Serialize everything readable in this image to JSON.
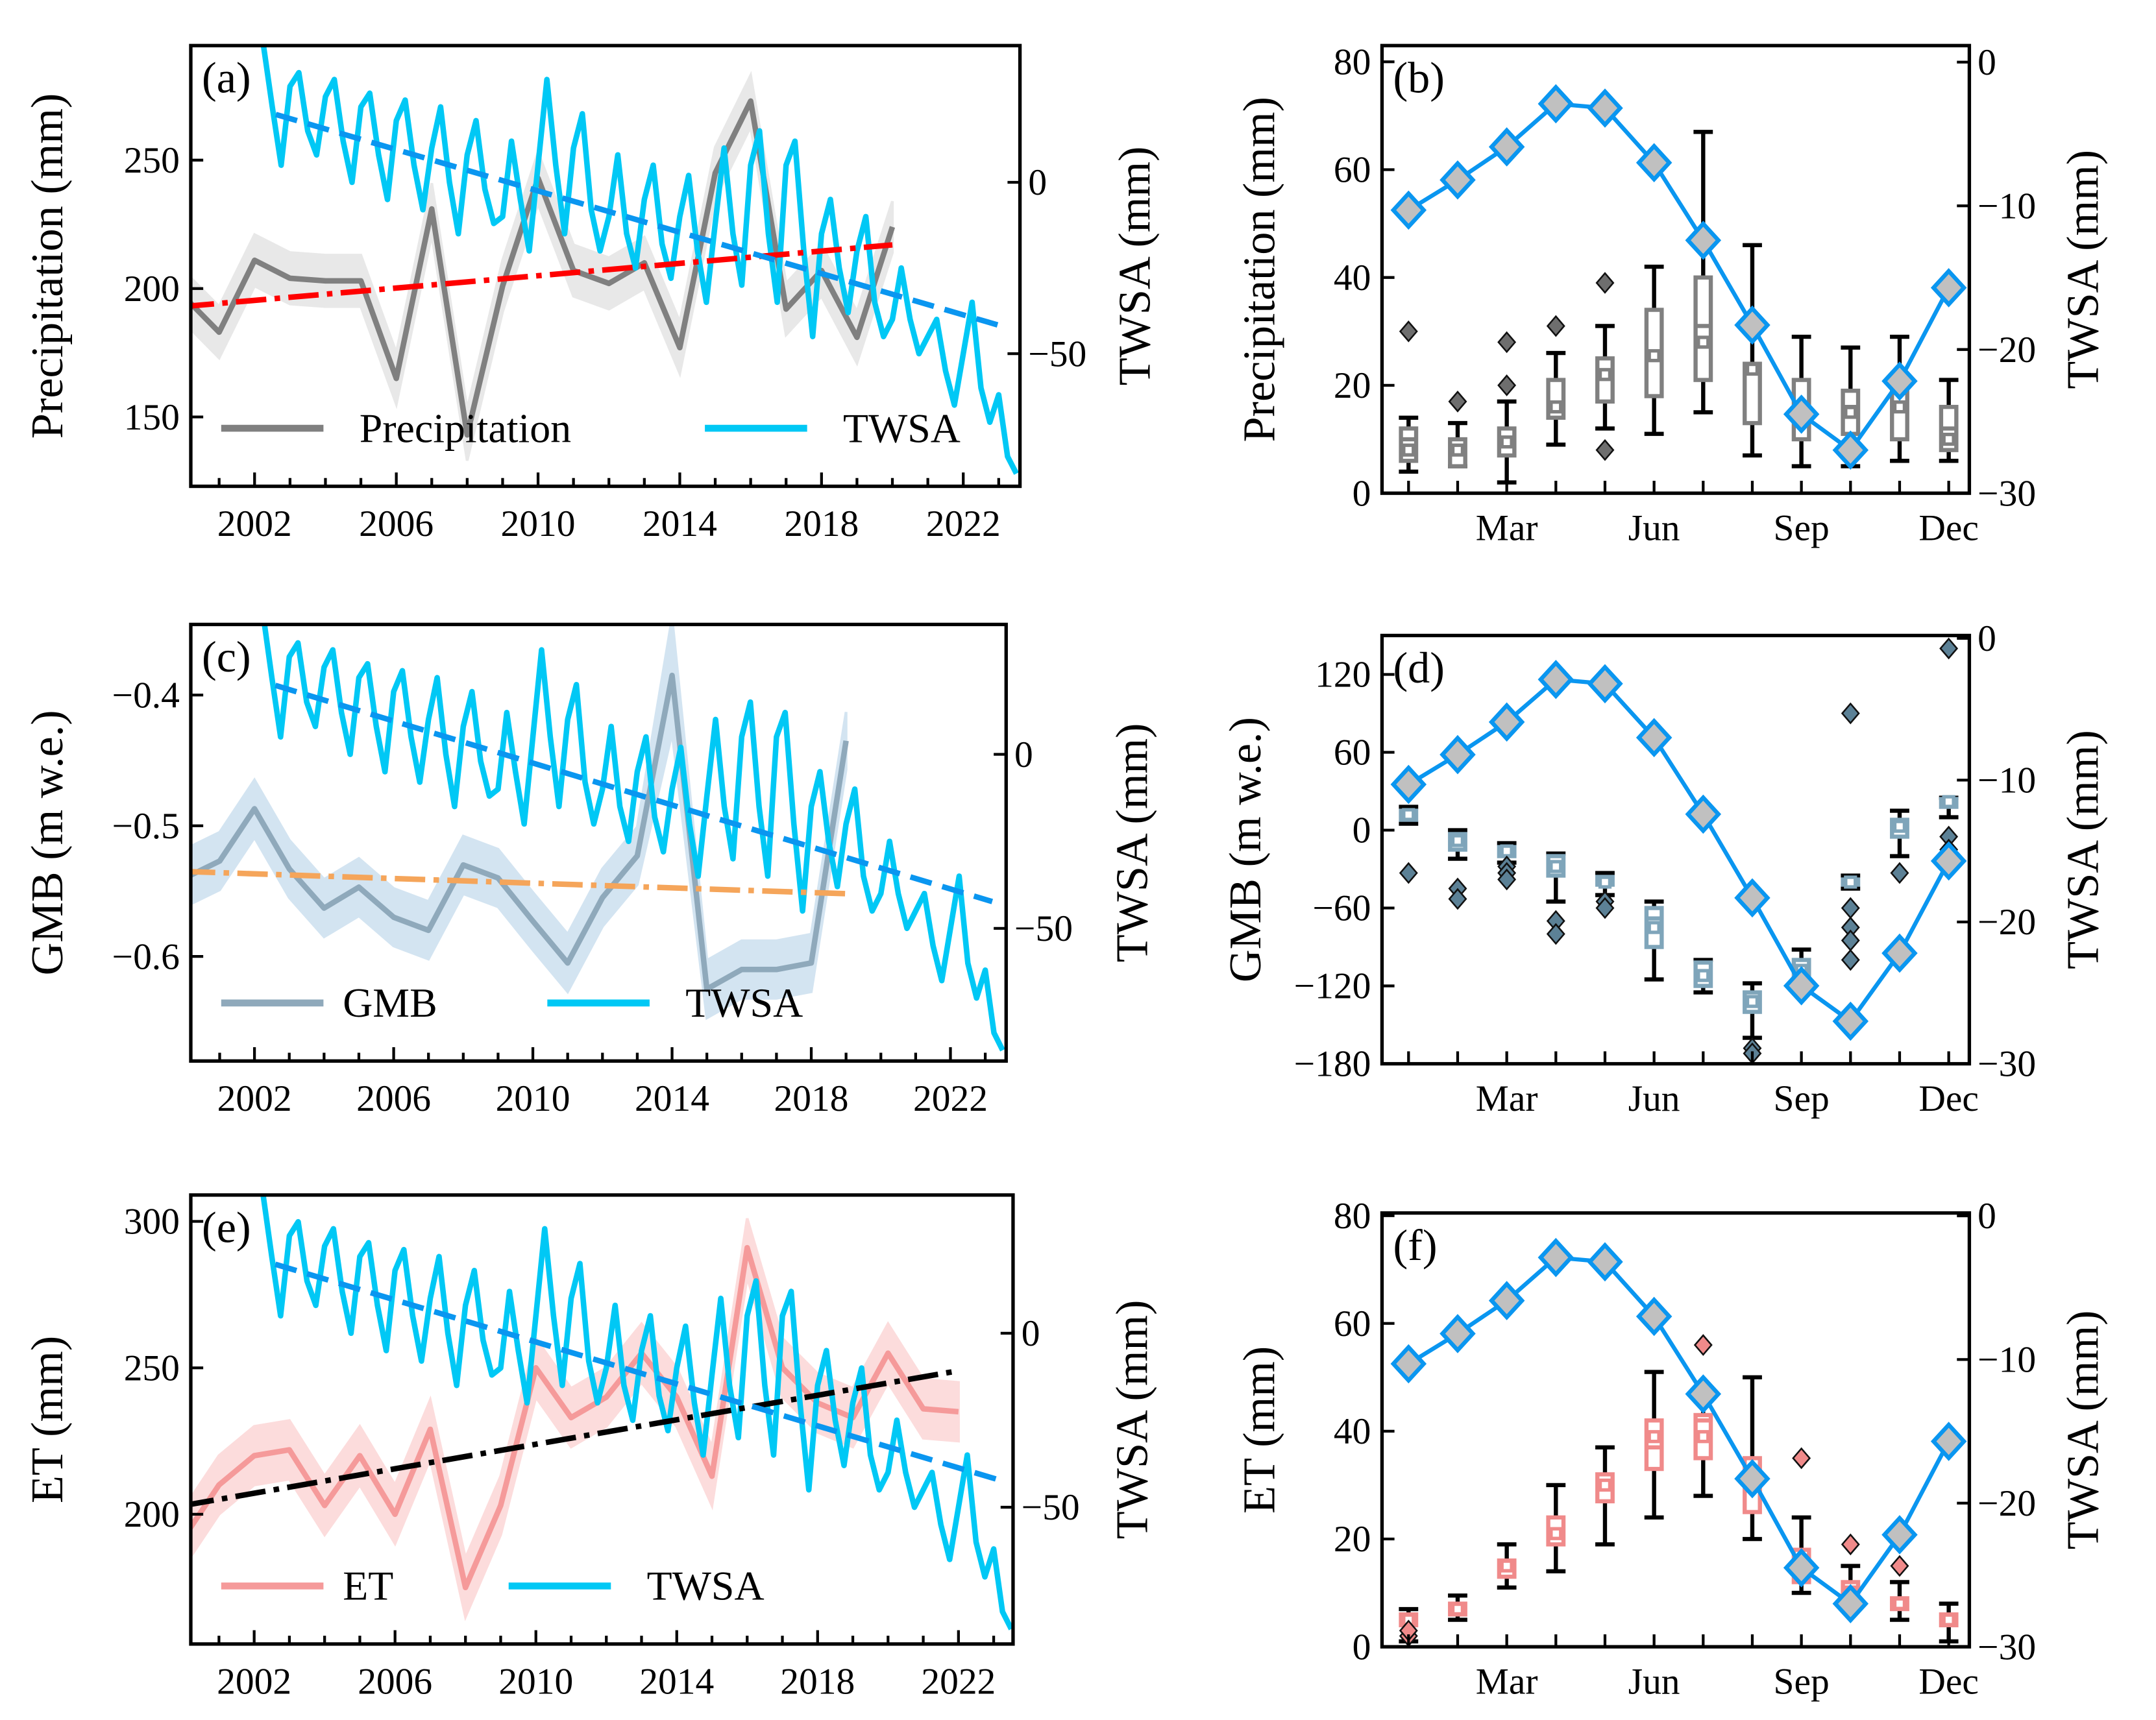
{
  "twsa_monthly_series": {
    "name": "TWSA",
    "x_start": 2002.25,
    "x_step": 0.25,
    "values": [
      40,
      22,
      5,
      28,
      32,
      15,
      8,
      25,
      30,
      12,
      0,
      22,
      26,
      8,
      -5,
      18,
      24,
      5,
      -8,
      10,
      22,
      0,
      -15,
      8,
      18,
      -2,
      -12,
      -10,
      12,
      -5,
      -20,
      5,
      30,
      5,
      -15,
      10,
      20,
      -8,
      -20,
      -10,
      8,
      -15,
      -25,
      -5,
      5,
      -18,
      -28,
      -10,
      2,
      -20,
      -35,
      -12,
      10,
      -15,
      -30,
      5,
      15,
      -15,
      -35,
      5,
      12,
      -20,
      -45,
      -15,
      -5,
      -25,
      -38,
      -20,
      -10,
      -35,
      -45,
      -40,
      -25,
      -40,
      -50,
      -45,
      -40,
      -55,
      -65,
      -50,
      -35,
      -60,
      -70,
      -62,
      -80,
      -85
    ]
  },
  "twsa_monthly_climatology": {
    "name": "TWSA",
    "months": [
      1,
      2,
      3,
      4,
      5,
      6,
      7,
      8,
      9,
      10,
      11,
      12
    ],
    "values": [
      -10.3,
      -8.2,
      -5.9,
      -2.9,
      -3.2,
      -7.0,
      -12.4,
      -18.3,
      -24.5,
      -27.0,
      -22.2,
      -15.7
    ]
  },
  "colors": {
    "twsa": "#00c8f5",
    "twsa_trend": "#0a96f0",
    "diamond_fill": "#c0c0c0",
    "precip": "#808080",
    "precip_band": "#e6e6e6",
    "precip_trend": "#ff0000",
    "gmb": "#8fa9bb",
    "gmb_band": "#cfe2f0",
    "gmb_trend": "#f5a55a",
    "et": "#f59a9a",
    "et_band": "#fcd9d9",
    "et_trend": "#000000"
  },
  "chart_data": [
    {
      "panel": "(a)",
      "type": "line",
      "ylabel": "Precipitation (mm)",
      "ylabel_right": "TWSA (mm)",
      "xlim": [
        2000.2,
        2023.6
      ],
      "ylim": [
        123,
        294.6
      ],
      "ylim_right": [
        -88.7,
        39.9
      ],
      "xticks": [
        2002,
        2006,
        2010,
        2014,
        2018,
        2022
      ],
      "yticks": [
        150,
        200,
        250
      ],
      "yticks_right": [
        0,
        -50
      ],
      "ytick_labels": [
        "150",
        "200",
        "250"
      ],
      "ytick_labels_right": [
        "0",
        "−50"
      ],
      "legend": [
        "Precipitation",
        "TWSA"
      ],
      "legend_position": "bottom",
      "series": {
        "name": "Precipitation",
        "x": [
          2000,
          2001,
          2002,
          2003,
          2004,
          2005,
          2006,
          2007,
          2008,
          2009,
          2010,
          2011,
          2012,
          2013,
          2014,
          2015,
          2016,
          2017,
          2018,
          2019,
          2020
        ],
        "values": [
          197,
          183,
          211,
          204,
          203,
          203,
          165,
          231,
          143,
          201,
          243,
          207,
          202,
          210,
          177,
          245,
          273,
          192,
          207,
          181,
          224
        ],
        "band": 10
      },
      "trend": {
        "x": [
          2000,
          2020
        ],
        "values": [
          193,
          217
        ]
      },
      "twsa_trend": {
        "x": [
          2002.6,
          2023.2
        ],
        "values": [
          19.8,
          -42.3
        ]
      }
    },
    {
      "panel": "(b)",
      "type": "box",
      "ylabel": "Precipitation (mm)",
      "ylabel_right": "TWSA (mm)",
      "xlim": [
        0.46,
        12.42
      ],
      "ylim": [
        0,
        83
      ],
      "ylim_right": [
        -30,
        1.15
      ],
      "xticks": [
        3,
        6,
        9,
        12
      ],
      "xtick_labels": [
        "Mar",
        "Jun",
        "Sep",
        "Dec"
      ],
      "yticks": [
        0,
        20,
        40,
        60,
        80
      ],
      "ytick_labels": [
        "0",
        "20",
        "40",
        "60",
        "80"
      ],
      "yticks_right": [
        0,
        -10,
        -20,
        -30
      ],
      "ytick_labels_right": [
        "0",
        "−10",
        "−20",
        "−30"
      ],
      "boxes": [
        {
          "month": 1,
          "low": 4,
          "q1": 6,
          "median": 10,
          "q3": 12,
          "high": 14,
          "mean": 8,
          "outliers": [
            30
          ]
        },
        {
          "month": 2,
          "low": 5,
          "q1": 5,
          "median": 8,
          "q3": 10,
          "high": 13,
          "mean": 8,
          "outliers": [
            17
          ]
        },
        {
          "month": 3,
          "low": 2,
          "q1": 7,
          "median": 10,
          "q3": 12,
          "high": 17,
          "mean": 9.5,
          "outliers": [
            20,
            28
          ]
        },
        {
          "month": 4,
          "low": 9,
          "q1": 14,
          "median": 16,
          "q3": 21,
          "high": 26,
          "mean": 16,
          "outliers": [
            31
          ]
        },
        {
          "month": 5,
          "low": 12,
          "q1": 17,
          "median": 22,
          "q3": 25,
          "high": 31,
          "mean": 22,
          "outliers": [
            8,
            39
          ]
        },
        {
          "month": 6,
          "low": 11,
          "q1": 18,
          "median": 25,
          "q3": 34,
          "high": 42,
          "mean": 25.5,
          "outliers": []
        },
        {
          "month": 7,
          "low": 15,
          "q1": 21,
          "median": 31,
          "q3": 40,
          "high": 67,
          "mean": 28,
          "outliers": []
        },
        {
          "month": 8,
          "low": 7,
          "q1": 13,
          "median": 23,
          "q3": 24,
          "high": 46,
          "mean": 23,
          "outliers": []
        },
        {
          "month": 9,
          "low": 5,
          "q1": 10,
          "median": 16,
          "q3": 21,
          "high": 29,
          "mean": 16,
          "outliers": []
        },
        {
          "month": 10,
          "low": 5,
          "q1": 11,
          "median": 16,
          "q3": 19,
          "high": 27,
          "mean": 15,
          "outliers": []
        },
        {
          "month": 11,
          "low": 6,
          "q1": 10,
          "median": 16,
          "q3": 19,
          "high": 29,
          "mean": 16,
          "outliers": []
        },
        {
          "month": 12,
          "low": 6,
          "q1": 8,
          "median": 12,
          "q3": 16,
          "high": 21,
          "mean": 10,
          "outliers": []
        }
      ]
    },
    {
      "panel": "(c)",
      "type": "line",
      "ylabel": "GMB (m w.e.)",
      "ylabel_right": "TWSA (mm)",
      "xlim": [
        2000.17,
        2023.6
      ],
      "ylim": [
        -0.68,
        -0.346
      ],
      "ylim_right": [
        -88.1,
        37.3
      ],
      "xticks": [
        2002,
        2006,
        2010,
        2014,
        2018,
        2022
      ],
      "yticks": [
        -0.4,
        -0.5,
        -0.6
      ],
      "ytick_labels": [
        "−0.4",
        "−0.5",
        "−0.6"
      ],
      "yticks_right": [
        0,
        -50
      ],
      "ytick_labels_right": [
        "0",
        "−50"
      ],
      "legend": [
        "GMB",
        "TWSA"
      ],
      "legend_position": "bottom",
      "series": {
        "name": "GMB",
        "x": [
          2000,
          2001,
          2002,
          2003,
          2004,
          2005,
          2006,
          2007,
          2008,
          2009,
          2010,
          2011,
          2012,
          2013,
          2014,
          2015,
          2016,
          2017,
          2018,
          2019
        ],
        "values": [
          -0.54,
          -0.527,
          -0.487,
          -0.533,
          -0.563,
          -0.547,
          -0.57,
          -0.58,
          -0.53,
          -0.54,
          -0.573,
          -0.605,
          -0.555,
          -0.523,
          -0.385,
          -0.625,
          -0.61,
          -0.61,
          -0.605,
          -0.435
        ],
        "band": 0.022
      },
      "trend": {
        "x": [
          2000,
          2019
        ],
        "values": [
          -0.535,
          -0.552
        ]
      },
      "twsa_trend": {
        "x": [
          2002.6,
          2023.2
        ],
        "values": [
          19.8,
          -42.3
        ]
      }
    },
    {
      "panel": "(d)",
      "type": "box",
      "ylabel": "GMB (m w.e.)",
      "ylabel_right": "TWSA (mm)",
      "xlim": [
        0.46,
        12.42
      ],
      "ylim": [
        -180,
        150
      ],
      "ylim_right": [
        -30,
        0.2
      ],
      "xticks": [
        3,
        6,
        9,
        12
      ],
      "xtick_labels": [
        "Mar",
        "Jun",
        "Sep",
        "Dec"
      ],
      "yticks": [
        -180,
        -120,
        -60,
        0,
        60,
        120
      ],
      "ytick_labels": [
        "−180",
        "−120",
        "−60",
        "0",
        "60",
        "120"
      ],
      "yticks_right": [
        0,
        -10,
        -20,
        -30
      ],
      "ytick_labels_right": [
        "0",
        "−10",
        "−20",
        "−30"
      ],
      "boxes": [
        {
          "month": 1,
          "low": 5,
          "q1": 8,
          "median": 12,
          "q3": 15,
          "high": 18,
          "mean": 12,
          "outliers": [
            -33
          ]
        },
        {
          "month": 2,
          "low": -22,
          "q1": -15,
          "median": -5,
          "q3": -3,
          "high": 0,
          "mean": -8,
          "outliers": [
            -45,
            -53
          ]
        },
        {
          "month": 3,
          "low": -25,
          "q1": -20,
          "median": -15,
          "q3": -13,
          "high": -10,
          "mean": -16,
          "outliers": [
            -28,
            -33,
            -38
          ]
        },
        {
          "month": 4,
          "low": -55,
          "q1": -35,
          "median": -25,
          "q3": -20,
          "high": -18,
          "mean": -28,
          "outliers": [
            -70,
            -80
          ]
        },
        {
          "month": 5,
          "low": -50,
          "q1": -42,
          "median": -38,
          "q3": -36,
          "high": -33,
          "mean": -40,
          "outliers": [
            -55,
            -60
          ]
        },
        {
          "month": 6,
          "low": -115,
          "q1": -90,
          "median": -68,
          "q3": -60,
          "high": -55,
          "mean": -75,
          "outliers": []
        },
        {
          "month": 7,
          "low": -125,
          "q1": -120,
          "median": -110,
          "q3": -102,
          "high": -100,
          "mean": -112,
          "outliers": []
        },
        {
          "month": 8,
          "low": -160,
          "q1": -140,
          "median": -130,
          "q3": -125,
          "high": -118,
          "mean": -132,
          "outliers": [
            -168,
            -172
          ]
        },
        {
          "month": 9,
          "low": -122,
          "q1": -115,
          "median": -105,
          "q3": -100,
          "high": -92,
          "mean": -108,
          "outliers": []
        },
        {
          "month": 10,
          "low": -45,
          "q1": -42,
          "median": -40,
          "q3": -38,
          "high": -35,
          "mean": -40,
          "outliers": [
            -60,
            -75,
            -85,
            -100,
            90
          ]
        },
        {
          "month": 11,
          "low": -20,
          "q1": -5,
          "median": 2,
          "q3": 8,
          "high": 15,
          "mean": 3,
          "outliers": [
            -33
          ]
        },
        {
          "month": 12,
          "low": 10,
          "q1": 18,
          "median": 22,
          "q3": 24,
          "high": 25,
          "mean": 22,
          "outliers": [
            -5,
            -15,
            140
          ]
        }
      ]
    },
    {
      "panel": "(e)",
      "type": "line",
      "ylabel": "ET (mm)",
      "ylabel_right": "TWSA (mm)",
      "xlim": [
        2000.2,
        2023.55
      ],
      "ylim": [
        155.7,
        309
      ],
      "ylim_right": [
        -89.3,
        39.7
      ],
      "xticks": [
        2002,
        2006,
        2010,
        2014,
        2018,
        2022
      ],
      "yticks": [
        200,
        250,
        300
      ],
      "ytick_labels": [
        "200",
        "250",
        "300"
      ],
      "yticks_right": [
        0,
        -50
      ],
      "ytick_labels_right": [
        "0",
        "−50"
      ],
      "legend": [
        "ET",
        "TWSA"
      ],
      "legend_position": "bottom",
      "series": {
        "name": "ET",
        "x": [
          2000,
          2001,
          2002,
          2003,
          2004,
          2005,
          2006,
          2007,
          2008,
          2009,
          2010,
          2011,
          2012,
          2013,
          2014,
          2015,
          2016,
          2017,
          2018,
          2019,
          2020,
          2021,
          2022
        ],
        "values": [
          192,
          210,
          220,
          222,
          203,
          220,
          200,
          229,
          175,
          203,
          250,
          233,
          240,
          255,
          240,
          213,
          291,
          250,
          238,
          233,
          255,
          236,
          235
        ],
        "band": 10
      },
      "trend": {
        "x": [
          2000,
          2022
        ],
        "values": [
          203,
          249
        ]
      },
      "twsa_trend": {
        "x": [
          2002.6,
          2023.2
        ],
        "values": [
          19.8,
          -42.3
        ]
      }
    },
    {
      "panel": "(f)",
      "type": "box",
      "ylabel": "ET (mm)",
      "ylabel_right": "TWSA (mm)",
      "xlim": [
        0.46,
        12.42
      ],
      "ylim": [
        0,
        80.5
      ],
      "ylim_right": [
        -30,
        0.2
      ],
      "xticks": [
        3,
        6,
        9,
        12
      ],
      "xtick_labels": [
        "Mar",
        "Jun",
        "Sep",
        "Dec"
      ],
      "yticks": [
        0,
        20,
        40,
        60,
        80
      ],
      "ytick_labels": [
        "0",
        "20",
        "40",
        "60",
        "80"
      ],
      "yticks_right": [
        0,
        -10,
        -20,
        -30
      ],
      "ytick_labels_right": [
        "0",
        "−10",
        "−20",
        "−30"
      ],
      "boxes": [
        {
          "month": 1,
          "low": 1,
          "q1": 4,
          "median": 5,
          "q3": 6,
          "high": 7,
          "mean": 5,
          "outliers": [
            2,
            3
          ]
        },
        {
          "month": 2,
          "low": 5,
          "q1": 6,
          "median": 7,
          "q3": 8,
          "high": 9.5,
          "mean": 7,
          "outliers": []
        },
        {
          "month": 3,
          "low": 11,
          "q1": 13,
          "median": 15,
          "q3": 16,
          "high": 19,
          "mean": 15,
          "outliers": []
        },
        {
          "month": 4,
          "low": 14,
          "q1": 19,
          "median": 21,
          "q3": 24,
          "high": 30,
          "mean": 21,
          "outliers": []
        },
        {
          "month": 5,
          "low": 19,
          "q1": 27,
          "median": 30,
          "q3": 32,
          "high": 37,
          "mean": 30,
          "outliers": []
        },
        {
          "month": 6,
          "low": 24,
          "q1": 33,
          "median": 37,
          "q3": 42,
          "high": 51,
          "mean": 39,
          "outliers": []
        },
        {
          "month": 7,
          "low": 28,
          "q1": 35,
          "median": 42,
          "q3": 43,
          "high": 48,
          "mean": 39,
          "outliers": [
            56
          ]
        },
        {
          "month": 8,
          "low": 20,
          "q1": 25,
          "median": 29,
          "q3": 35,
          "high": 50,
          "mean": 30,
          "outliers": []
        },
        {
          "month": 9,
          "low": 10,
          "q1": 12,
          "median": 16,
          "q3": 18,
          "high": 24,
          "mean": 16,
          "outliers": [
            35
          ]
        },
        {
          "month": 10,
          "low": 8,
          "q1": 9,
          "median": 11,
          "q3": 12,
          "high": 15,
          "mean": 10,
          "outliers": [
            19
          ]
        },
        {
          "month": 11,
          "low": 5,
          "q1": 7,
          "median": 8,
          "q3": 9,
          "high": 12,
          "mean": 8,
          "outliers": [
            15
          ]
        },
        {
          "month": 12,
          "low": 1,
          "q1": 4,
          "median": 5,
          "q3": 6,
          "high": 8,
          "mean": 5,
          "outliers": []
        }
      ]
    }
  ]
}
